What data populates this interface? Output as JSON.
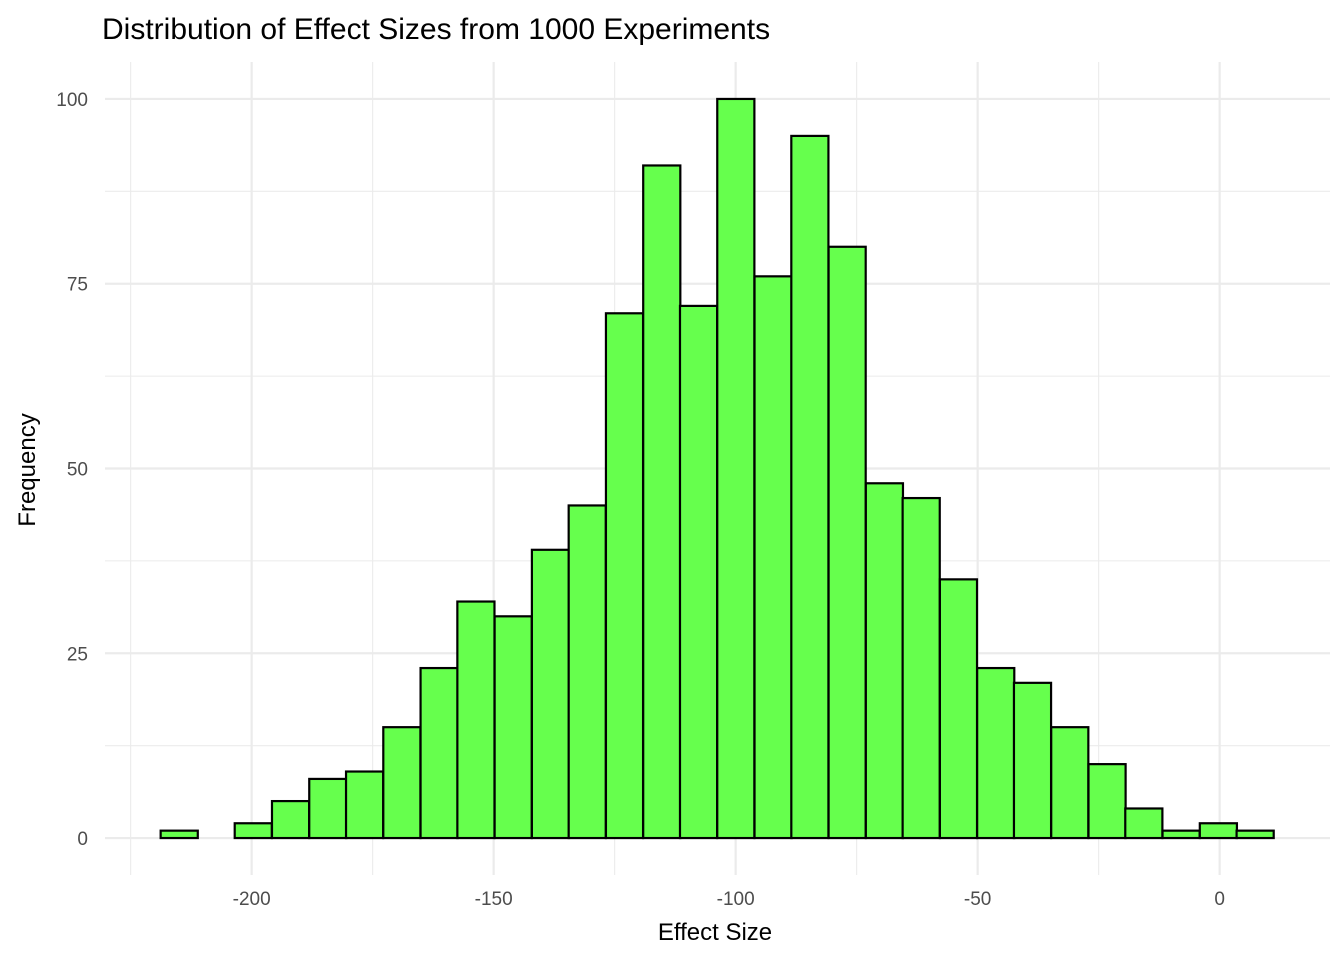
{
  "chart_data": {
    "type": "bar",
    "title": "Distribution of Effect Sizes from 1000 Experiments",
    "xlabel": "Effect Size",
    "ylabel": "Frequency",
    "bin_width": 7.67,
    "bins": [
      {
        "x_start": -218.8,
        "count": 1
      },
      {
        "x_start": -211.1,
        "count": 0
      },
      {
        "x_start": -203.5,
        "count": 2
      },
      {
        "x_start": -195.8,
        "count": 5
      },
      {
        "x_start": -188.1,
        "count": 8
      },
      {
        "x_start": -180.5,
        "count": 9
      },
      {
        "x_start": -172.8,
        "count": 15
      },
      {
        "x_start": -165.1,
        "count": 23
      },
      {
        "x_start": -157.5,
        "count": 32
      },
      {
        "x_start": -149.8,
        "count": 30
      },
      {
        "x_start": -142.1,
        "count": 39
      },
      {
        "x_start": -134.5,
        "count": 45
      },
      {
        "x_start": -126.8,
        "count": 71
      },
      {
        "x_start": -119.1,
        "count": 91
      },
      {
        "x_start": -111.5,
        "count": 72
      },
      {
        "x_start": -103.8,
        "count": 100
      },
      {
        "x_start": -96.1,
        "count": 76
      },
      {
        "x_start": -88.5,
        "count": 95
      },
      {
        "x_start": -80.8,
        "count": 80
      },
      {
        "x_start": -73.1,
        "count": 48
      },
      {
        "x_start": -65.5,
        "count": 46
      },
      {
        "x_start": -57.8,
        "count": 35
      },
      {
        "x_start": -50.1,
        "count": 23
      },
      {
        "x_start": -42.5,
        "count": 21
      },
      {
        "x_start": -34.8,
        "count": 15
      },
      {
        "x_start": -27.1,
        "count": 10
      },
      {
        "x_start": -19.5,
        "count": 4
      },
      {
        "x_start": -11.8,
        "count": 1
      },
      {
        "x_start": -4.1,
        "count": 2
      },
      {
        "x_start": 3.5,
        "count": 1
      }
    ],
    "x_ticks": [
      -200,
      -150,
      -100,
      -50,
      0
    ],
    "x_tick_labels": [
      "-200",
      "-150",
      "-100",
      "-50",
      "0"
    ],
    "y_ticks": [
      0,
      25,
      50,
      75,
      100
    ],
    "y_tick_labels": [
      "0",
      "25",
      "50",
      "75",
      "100"
    ],
    "xlim": [
      -230.3,
      22.8
    ],
    "ylim": [
      -5,
      105
    ],
    "grid": true,
    "fill_color": "#66ff4d",
    "stroke_color": "#000000"
  }
}
